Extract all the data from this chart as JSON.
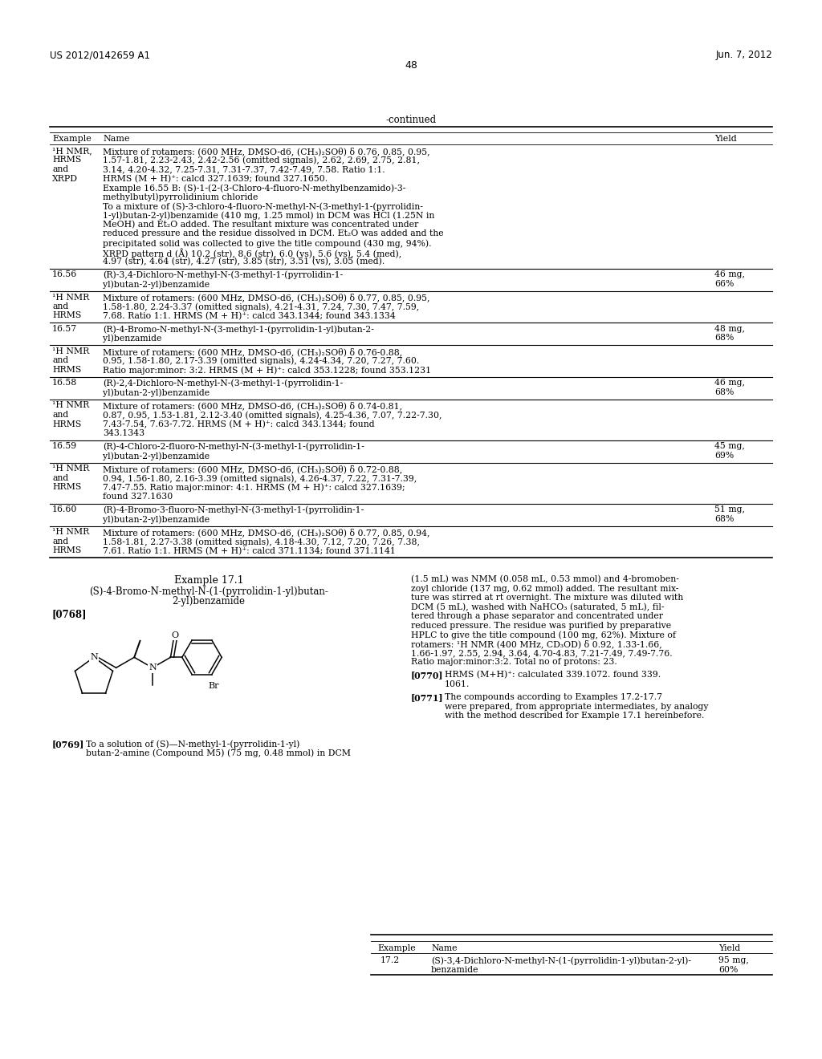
{
  "background_color": "#ffffff",
  "header_left": "US 2012/0142659 A1",
  "header_right": "Jun. 7, 2012",
  "page_number": "48",
  "continued_label": "-continued"
}
